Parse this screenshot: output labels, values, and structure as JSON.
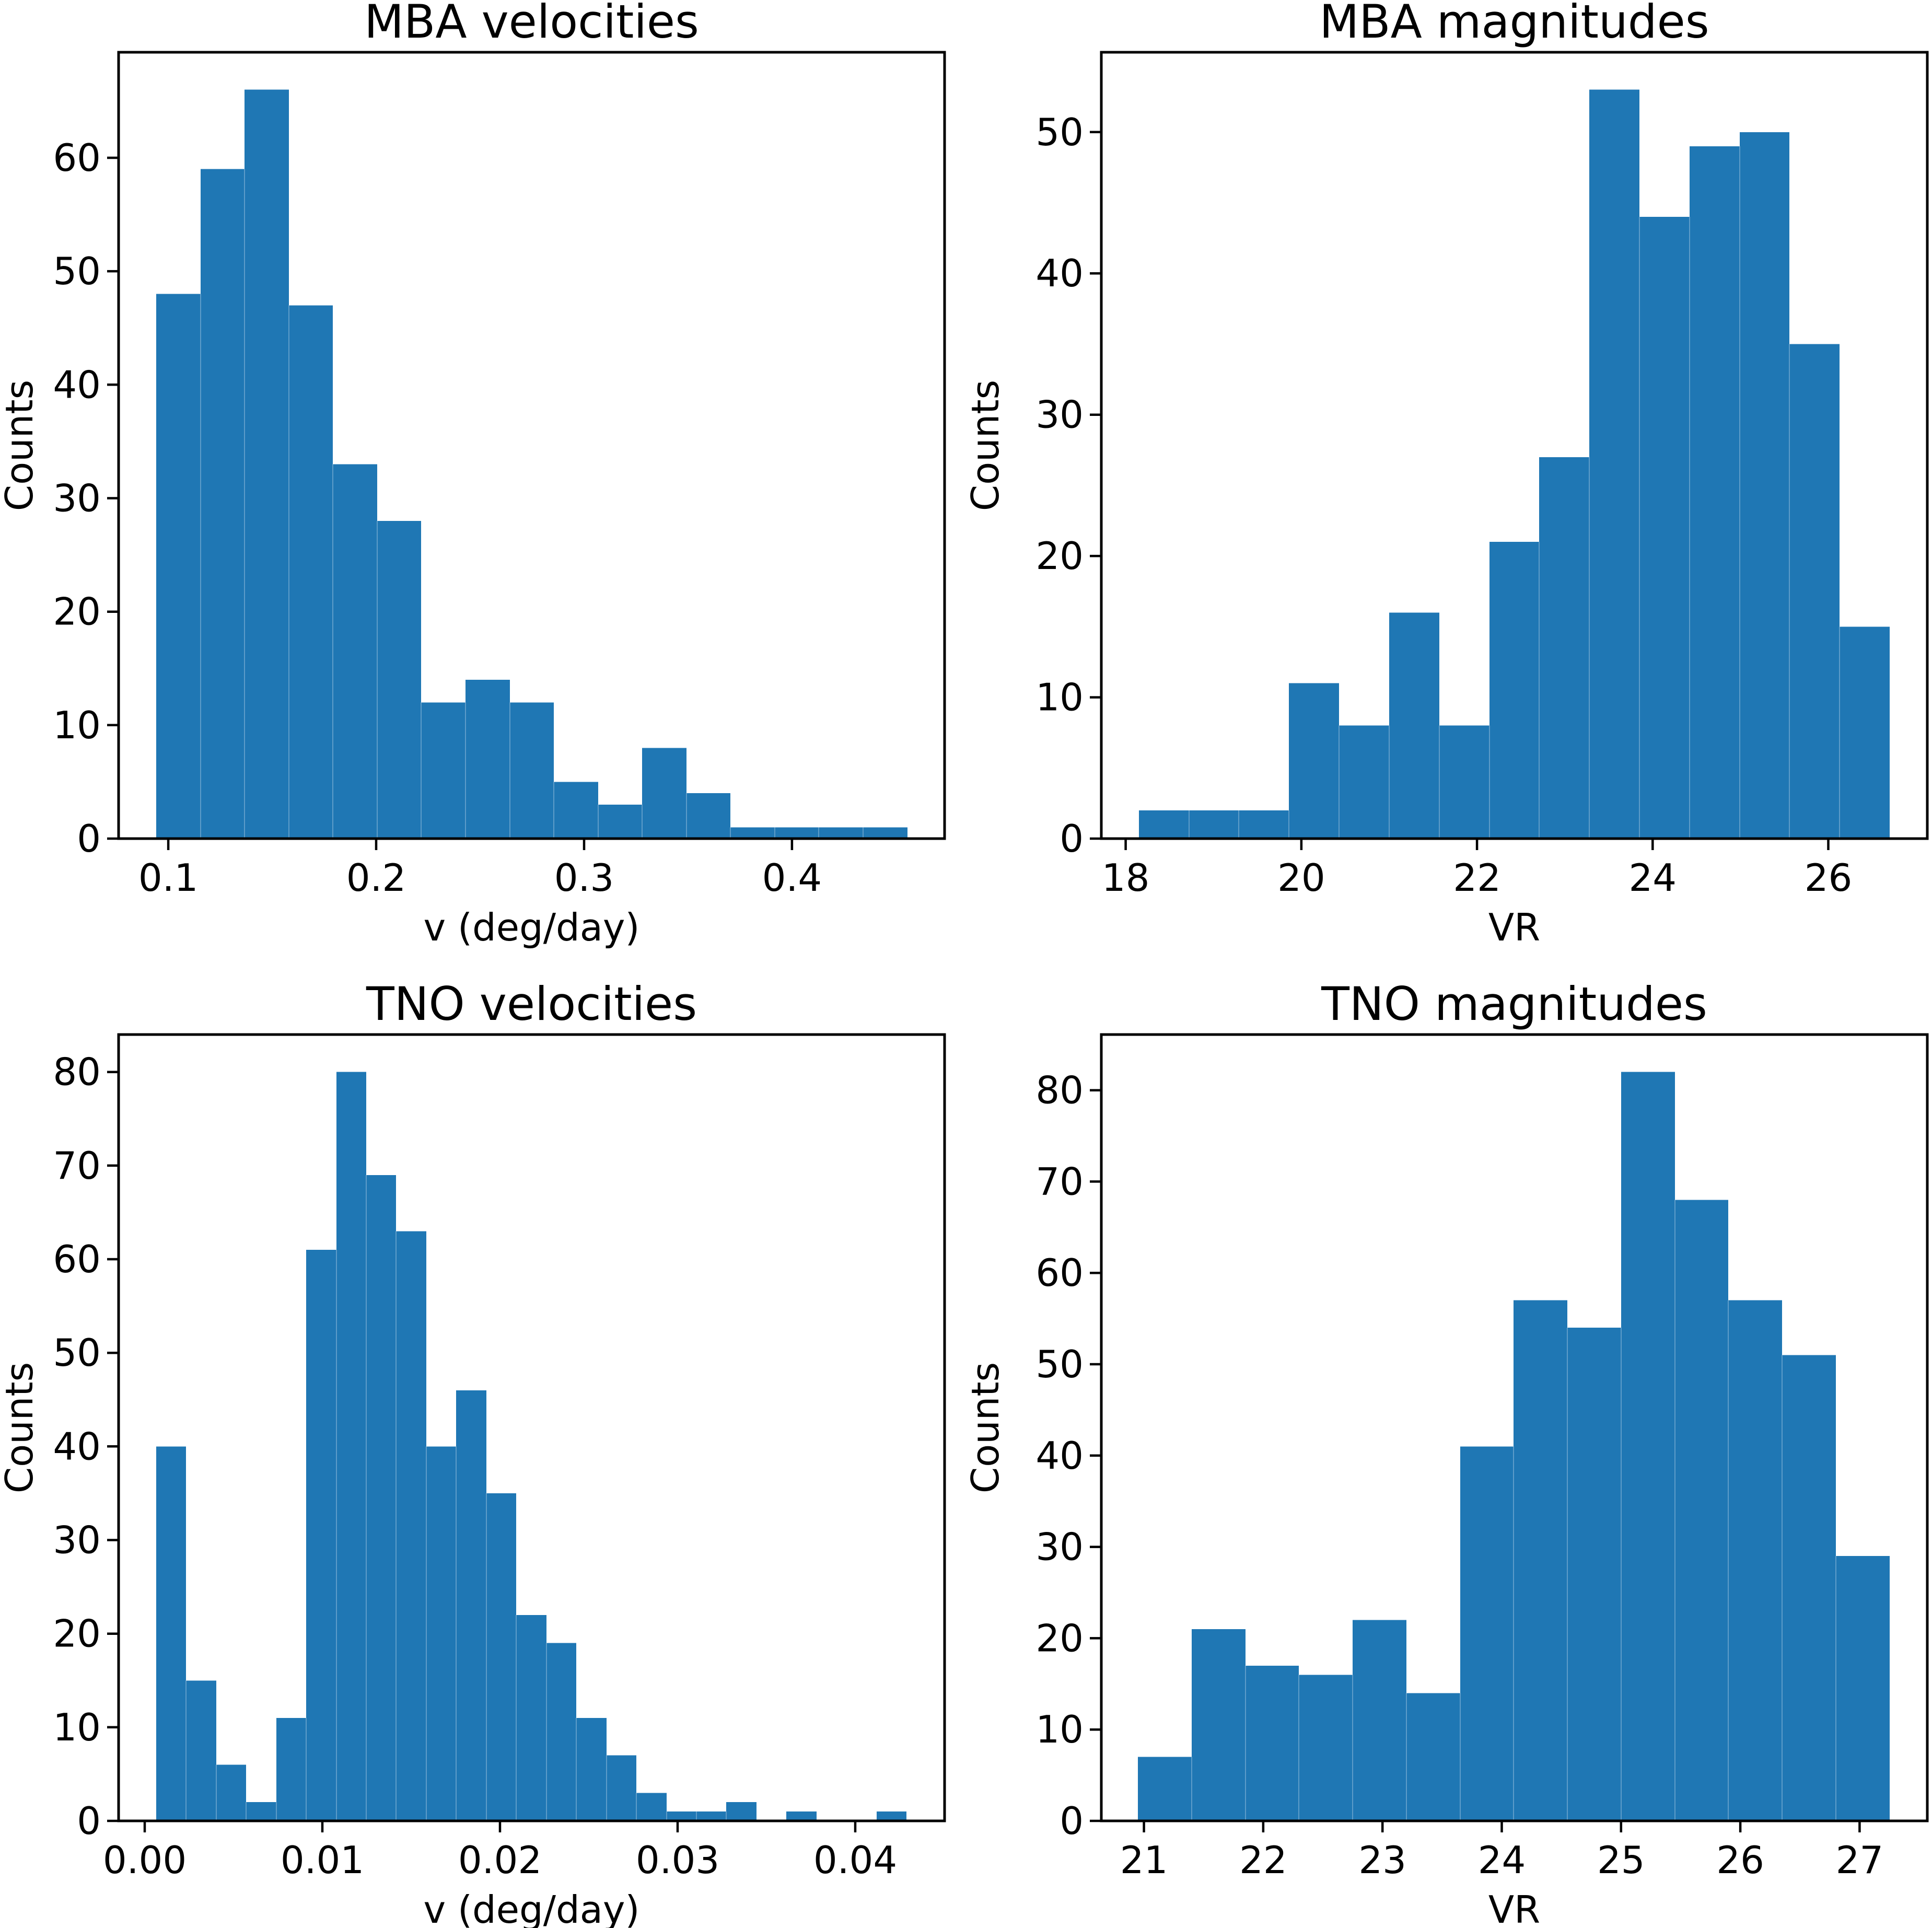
{
  "figure": {
    "background": "#ffffff",
    "frame_color": "#000000",
    "text_color": "#000000"
  },
  "chart_data": [
    {
      "id": "mba-velocities",
      "type": "bar",
      "subtype": "histogram",
      "title": "MBA velocities",
      "xlabel": "v (deg/day)",
      "ylabel": "Counts",
      "bar_color": "#1f77b4",
      "bin_start": 0.0942,
      "bin_width": 0.02125,
      "counts": [
        48,
        59,
        66,
        47,
        33,
        28,
        12,
        14,
        12,
        5,
        3,
        8,
        4,
        1,
        1,
        1,
        1
      ],
      "xlim": [
        0.0761,
        0.4734
      ],
      "ylim": [
        0,
        69.3
      ],
      "xticks": [
        0.1,
        0.2,
        0.3,
        0.4
      ],
      "xtick_labels": [
        "0.1",
        "0.2",
        "0.3",
        "0.4"
      ],
      "yticks": [
        0,
        10,
        20,
        30,
        40,
        50,
        60
      ],
      "ytick_labels": [
        "0",
        "10",
        "20",
        "30",
        "40",
        "50",
        "60"
      ],
      "grid": false,
      "legend": null
    },
    {
      "id": "mba-magnitudes",
      "type": "bar",
      "subtype": "histogram",
      "title": "MBA magnitudes",
      "xlabel": "VR",
      "ylabel": "Counts",
      "bar_color": "#1f77b4",
      "bin_start": 18.15,
      "bin_width": 0.57,
      "counts": [
        2,
        2,
        2,
        11,
        8,
        16,
        8,
        21,
        27,
        53,
        44,
        49,
        50,
        35,
        15
      ],
      "xlim": [
        17.7225,
        27.1275
      ],
      "ylim": [
        0,
        55.65
      ],
      "xticks": [
        18,
        20,
        22,
        24,
        26
      ],
      "xtick_labels": [
        "18",
        "20",
        "22",
        "24",
        "26"
      ],
      "yticks": [
        0,
        10,
        20,
        30,
        40,
        50
      ],
      "ytick_labels": [
        "0",
        "10",
        "20",
        "30",
        "40",
        "50"
      ],
      "grid": false,
      "legend": null
    },
    {
      "id": "tno-velocities",
      "type": "bar",
      "subtype": "histogram",
      "title": "TNO velocities",
      "xlabel": "v (deg/day)",
      "ylabel": "Counts",
      "bar_color": "#1f77b4",
      "bin_start": 0.00064,
      "bin_width": 0.00169,
      "counts": [
        40,
        15,
        6,
        2,
        11,
        61,
        80,
        69,
        63,
        40,
        46,
        35,
        22,
        19,
        11,
        7,
        3,
        1,
        1,
        2,
        0,
        1,
        0,
        0,
        1
      ],
      "xlim": [
        -0.00147,
        0.04503
      ],
      "ylim": [
        0,
        84
      ],
      "xticks": [
        0.0,
        0.01,
        0.02,
        0.03,
        0.04
      ],
      "xtick_labels": [
        "0.00",
        "0.01",
        "0.02",
        "0.03",
        "0.04"
      ],
      "yticks": [
        0,
        10,
        20,
        30,
        40,
        50,
        60,
        70,
        80
      ],
      "ytick_labels": [
        "0",
        "10",
        "20",
        "30",
        "40",
        "50",
        "60",
        "70",
        "80"
      ],
      "grid": false,
      "legend": null
    },
    {
      "id": "tno-magnitudes",
      "type": "bar",
      "subtype": "histogram",
      "title": "TNO magnitudes",
      "xlabel": "VR",
      "ylabel": "Counts",
      "bar_color": "#1f77b4",
      "bin_start": 20.95,
      "bin_width": 0.45,
      "counts": [
        7,
        21,
        17,
        16,
        22,
        14,
        41,
        57,
        54,
        82,
        68,
        57,
        51,
        29
      ],
      "xlim": [
        20.6425,
        27.5675
      ],
      "ylim": [
        0,
        86.1
      ],
      "xticks": [
        21,
        22,
        23,
        24,
        25,
        26,
        27
      ],
      "xtick_labels": [
        "21",
        "22",
        "23",
        "24",
        "25",
        "26",
        "27"
      ],
      "yticks": [
        0,
        10,
        20,
        30,
        40,
        50,
        60,
        70,
        80
      ],
      "ytick_labels": [
        "0",
        "10",
        "20",
        "30",
        "40",
        "50",
        "60",
        "70",
        "80"
      ],
      "grid": false,
      "legend": null
    }
  ]
}
